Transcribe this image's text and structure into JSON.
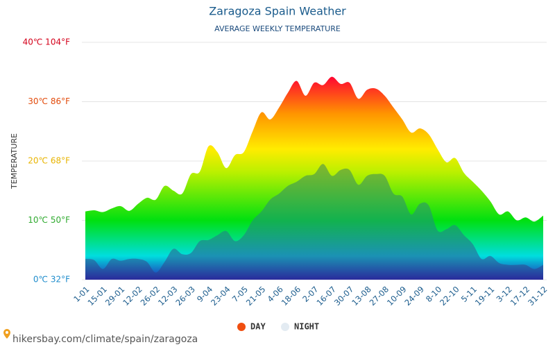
{
  "chart_data": {
    "type": "area",
    "title": "Zaragoza Spain Weather",
    "subtitle": "AVERAGE WEEKLY TEMPERATURE",
    "y_label": "TEMPERATURE",
    "footer": "hikersbay.com/climate/spain/zaragoza",
    "categories": [
      "1-01",
      null,
      "15-01",
      null,
      "29-01",
      null,
      "12-02",
      null,
      "26-02",
      null,
      "12-03",
      null,
      "26-03",
      null,
      "9-04",
      null,
      "23-04",
      null,
      "7-05",
      null,
      "21-05",
      null,
      "4-06",
      null,
      "18-06",
      null,
      "2-07",
      null,
      "16-07",
      null,
      "30-07",
      null,
      "13-08",
      null,
      "27-08",
      null,
      "10-09",
      null,
      "24-09",
      null,
      "8-10",
      null,
      "22-10",
      null,
      "5-11",
      null,
      "19-11",
      null,
      "3-12",
      null,
      "17-12",
      null,
      "31-12"
    ],
    "series": [
      {
        "name": "DAY",
        "color": "#f04e10",
        "values": [
          11.5,
          11.7,
          11.4,
          12.0,
          12.4,
          11.6,
          12.8,
          13.8,
          13.5,
          15.8,
          15.0,
          14.5,
          17.8,
          18.2,
          22.5,
          21.5,
          18.8,
          21.0,
          21.5,
          25.0,
          28.2,
          27.0,
          29.0,
          31.5,
          33.5,
          31.0,
          33.2,
          32.8,
          34.2,
          33.0,
          33.2,
          30.5,
          32.0,
          32.2,
          31.0,
          29.0,
          27.0,
          24.8,
          25.5,
          24.5,
          22.0,
          19.8,
          20.5,
          18.0,
          16.5,
          15.0,
          13.2,
          11.0,
          11.5,
          10.0,
          10.5,
          9.8,
          10.8
        ]
      },
      {
        "name": "NIGHT",
        "color": "#e3ebf2",
        "values": [
          3.5,
          3.3,
          1.8,
          3.5,
          3.2,
          3.5,
          3.5,
          3.0,
          1.2,
          3.0,
          5.2,
          4.3,
          4.5,
          6.5,
          6.7,
          7.5,
          8.2,
          6.5,
          7.5,
          10.0,
          11.5,
          13.5,
          14.5,
          15.8,
          16.5,
          17.5,
          17.8,
          19.5,
          17.5,
          18.5,
          18.5,
          16.0,
          17.5,
          17.8,
          17.5,
          14.5,
          14.0,
          11.0,
          12.8,
          12.5,
          8.3,
          8.5,
          9.2,
          7.5,
          6.0,
          3.5,
          4.0,
          2.8,
          2.5,
          2.5,
          2.5,
          1.8,
          2.5
        ]
      }
    ],
    "ylim": [
      0,
      40
    ],
    "yticks": [
      {
        "value": 0,
        "label": "0℃ 32°F"
      },
      {
        "value": 10,
        "label": "10℃ 50°F"
      },
      {
        "value": 20,
        "label": "20℃ 68°F"
      },
      {
        "value": 30,
        "label": "30℃ 86°F"
      },
      {
        "value": 40,
        "label": "40℃ 104°F"
      }
    ],
    "ytick_colors": [
      "#1e8ccc",
      "#2faa2f",
      "#e8b400",
      "#e24a0a",
      "#d4001a"
    ],
    "grid": true
  }
}
